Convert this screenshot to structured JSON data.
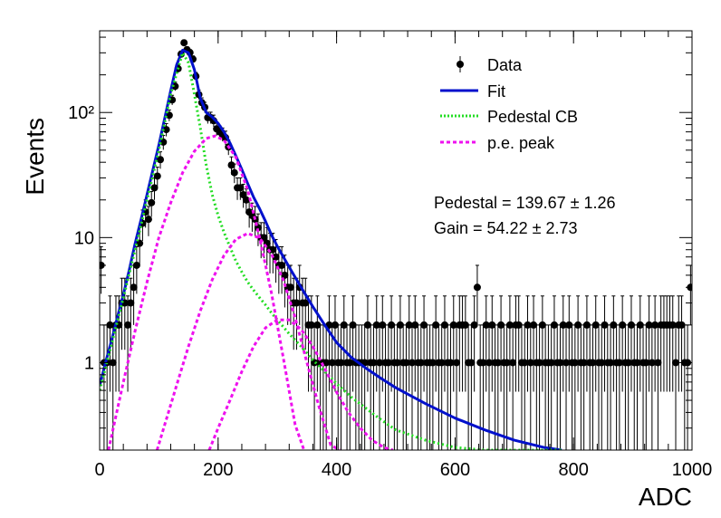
{
  "chart_data": {
    "type": "scatter",
    "title": "",
    "xlabel": "ADC",
    "ylabel": "Events",
    "xlim": [
      0,
      1000
    ],
    "ylim": [
      0.2,
      450
    ],
    "yscale": "log",
    "grid": false,
    "legend_position": "top-right",
    "x_ticks": [
      "0",
      "200",
      "400",
      "600",
      "800",
      "1000"
    ],
    "y_ticks": [
      {
        "value": 1,
        "label": "1"
      },
      {
        "value": 10,
        "label": "10"
      },
      {
        "value": 100,
        "label": "10²"
      }
    ],
    "legend": [
      {
        "label": "Data",
        "kind": "marker",
        "color": "#000000"
      },
      {
        "label": "Fit",
        "kind": "line",
        "color": "#0010cc"
      },
      {
        "label": "Pedestal CB",
        "kind": "dotted",
        "color": "#22dd22"
      },
      {
        "label": "p.e. peak",
        "kind": "dashed",
        "color": "#ee11ee"
      }
    ],
    "annotations": [
      "Pedestal = 139.67 ± 1.26",
      "Gain = 54.22 ± 2.73"
    ],
    "series": [
      {
        "name": "Data",
        "kind": "points",
        "color": "#000000",
        "x": [
          0,
          5,
          10,
          15,
          20,
          25,
          30,
          35,
          40,
          45,
          50,
          55,
          60,
          65,
          70,
          75,
          80,
          85,
          90,
          95,
          100,
          105,
          110,
          115,
          120,
          125,
          130,
          135,
          140,
          145,
          150,
          155,
          160,
          165,
          170,
          175,
          180,
          185,
          190,
          195,
          200,
          205,
          210,
          215,
          220,
          225,
          230,
          235,
          240,
          245,
          250,
          255,
          260,
          265,
          270,
          275,
          280,
          285,
          290,
          295,
          300,
          305,
          310,
          315,
          320,
          325,
          330,
          335,
          340,
          345,
          350,
          355,
          360,
          365,
          370,
          375,
          380,
          385,
          390,
          395,
          400,
          405,
          410,
          415,
          420,
          425,
          430,
          435,
          440,
          445,
          450,
          455,
          460,
          465,
          470,
          475,
          480,
          485,
          490,
          495,
          500,
          505,
          510,
          515,
          520,
          525,
          530,
          535,
          540,
          545,
          550,
          555,
          560,
          565,
          570,
          575,
          580,
          585,
          590,
          595,
          600,
          605,
          610,
          615,
          620,
          625,
          630,
          635,
          640,
          645,
          650,
          655,
          660,
          665,
          670,
          675,
          680,
          685,
          690,
          695,
          700,
          705,
          710,
          715,
          720,
          725,
          730,
          735,
          740,
          745,
          750,
          755,
          760,
          765,
          770,
          775,
          780,
          785,
          790,
          795,
          800,
          805,
          810,
          815,
          820,
          825,
          830,
          835,
          840,
          845,
          850,
          855,
          860,
          865,
          870,
          875,
          880,
          885,
          890,
          895,
          900,
          905,
          910,
          915,
          920,
          925,
          930,
          935,
          940,
          945,
          950,
          955,
          960,
          965,
          970,
          975,
          980,
          985,
          990,
          995
        ],
        "y": [
          6,
          1,
          1,
          2,
          1,
          2,
          2,
          3,
          3,
          2,
          3,
          4,
          6,
          9,
          13,
          16,
          14,
          19,
          25,
          31,
          42,
          58,
          73,
          95,
          126,
          162,
          224,
          293,
          361,
          318,
          301,
          267,
          195,
          139,
          120,
          110,
          91,
          91,
          86,
          74,
          70,
          67,
          63,
          53,
          38,
          33,
          25,
          25,
          22,
          20,
          16,
          15,
          14,
          12,
          10,
          10,
          9,
          8,
          8,
          7,
          6,
          6,
          5,
          4,
          4,
          3,
          3,
          4,
          3,
          3,
          2,
          2,
          1,
          2,
          1,
          1,
          1,
          2,
          1,
          2,
          1,
          1,
          2,
          1,
          1,
          2,
          1,
          1,
          1,
          1,
          2,
          1,
          1,
          2,
          1,
          2,
          1,
          1,
          2,
          1,
          1,
          2,
          1,
          1,
          2,
          1,
          2,
          1,
          1,
          2,
          1,
          1,
          1,
          2,
          1,
          1,
          2,
          1,
          1,
          2,
          1,
          2,
          2,
          2,
          1,
          1,
          2,
          4,
          1,
          1,
          2,
          1,
          2,
          1,
          1,
          2,
          1,
          1,
          2,
          1,
          2,
          2,
          1,
          1,
          2,
          1,
          2,
          1,
          1,
          2,
          1,
          1,
          1,
          2,
          1,
          1,
          2,
          1,
          2,
          1,
          1,
          2,
          1,
          1,
          2,
          1,
          1,
          2,
          1,
          1,
          2,
          1,
          1,
          2,
          1,
          1,
          2,
          1,
          1,
          2,
          1,
          1,
          2,
          1,
          1,
          2,
          1,
          2,
          1,
          2,
          2,
          2,
          2,
          2,
          1,
          2,
          2,
          1,
          1,
          4
        ]
      },
      {
        "name": "Fit",
        "kind": "line",
        "color": "#0010cc",
        "x": [
          0,
          10,
          20,
          30,
          40,
          50,
          60,
          70,
          80,
          90,
          100,
          110,
          120,
          130,
          140,
          150,
          160,
          170,
          180,
          190,
          200,
          210,
          220,
          230,
          240,
          250,
          260,
          270,
          280,
          290,
          300,
          320,
          340,
          360,
          380,
          400,
          425,
          450,
          475,
          500,
          550,
          600,
          650,
          700,
          750,
          780
        ],
        "y": [
          0.65,
          1.0,
          1.5,
          2.3,
          3.5,
          5.5,
          9,
          14,
          22,
          35,
          55,
          90,
          150,
          240,
          315,
          300,
          220,
          130,
          100,
          92,
          82,
          70,
          57,
          45,
          35,
          27,
          21,
          17,
          13.5,
          10.5,
          8.5,
          5.8,
          4.0,
          2.8,
          2.0,
          1.45,
          1.1,
          0.9,
          0.75,
          0.63,
          0.47,
          0.36,
          0.29,
          0.24,
          0.21,
          0.2
        ]
      },
      {
        "name": "Pedestal CB",
        "kind": "dotted",
        "color": "#22dd22",
        "x": [
          0,
          20,
          40,
          60,
          80,
          100,
          120,
          140,
          150,
          160,
          170,
          180,
          190,
          200,
          210,
          220,
          230,
          240,
          250,
          260,
          270,
          280,
          290,
          300,
          320,
          340,
          360,
          380,
          400,
          425,
          450,
          475,
          500,
          550,
          600,
          650,
          700,
          750,
          780
        ],
        "y": [
          0.6,
          1.4,
          3.3,
          8,
          20,
          50,
          140,
          300,
          250,
          140,
          75,
          38,
          22,
          15,
          11,
          8.4,
          6.5,
          5.3,
          4.4,
          3.8,
          3.3,
          2.9,
          2.5,
          2.2,
          1.7,
          1.35,
          1.05,
          0.85,
          0.68,
          0.53,
          0.43,
          0.35,
          0.29,
          0.24,
          0.21,
          0.2,
          0.2,
          0.2,
          0.2
        ]
      },
      {
        "name": "p.e. peak (1)",
        "kind": "dashed",
        "color": "#ee11ee",
        "x": [
          15,
          25,
          40,
          60,
          80,
          100,
          120,
          140,
          160,
          180,
          195,
          210,
          230,
          250,
          270,
          290,
          310,
          330,
          345
        ],
        "y": [
          0.2,
          0.33,
          0.7,
          1.8,
          4.4,
          10,
          19,
          33,
          49,
          62,
          65,
          60,
          44,
          24,
          10,
          3.6,
          1.1,
          0.32,
          0.2
        ]
      },
      {
        "name": "p.e. peak (2)",
        "kind": "dashed",
        "color": "#ee11ee",
        "x": [
          97,
          110,
          130,
          150,
          170,
          190,
          210,
          230,
          250,
          270,
          290,
          310,
          330,
          350,
          370,
          390,
          405
        ],
        "y": [
          0.2,
          0.32,
          0.66,
          1.35,
          2.6,
          4.6,
          7.2,
          9.7,
          10.8,
          9.9,
          7.4,
          4.6,
          2.3,
          1.0,
          0.45,
          0.22,
          0.2
        ]
      },
      {
        "name": "p.e. peak (3)",
        "kind": "dashed",
        "color": "#ee11ee",
        "x": [
          185,
          200,
          220,
          240,
          260,
          280,
          300,
          320,
          340,
          360,
          380,
          400,
          420,
          440,
          460,
          480,
          495
        ],
        "y": [
          0.2,
          0.3,
          0.5,
          0.85,
          1.35,
          1.9,
          2.2,
          2.2,
          1.85,
          1.35,
          0.9,
          0.58,
          0.4,
          0.3,
          0.24,
          0.21,
          0.2
        ]
      }
    ]
  }
}
